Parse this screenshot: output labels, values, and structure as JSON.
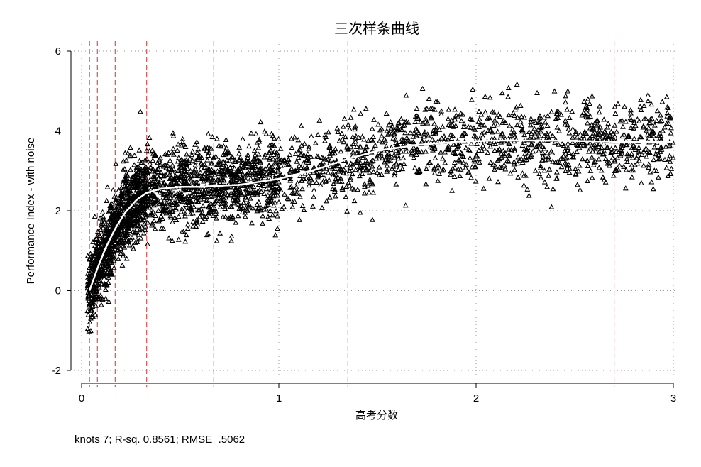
{
  "chart_data": {
    "type": "scatter",
    "title": "三次样条曲线",
    "xlabel": "高考分数",
    "ylabel": "Performance Index - with noise",
    "xlim": [
      0,
      3
    ],
    "ylim": [
      -2,
      6
    ],
    "x_ticks": [
      0,
      1,
      2,
      3
    ],
    "x_tick_labels": [
      "0",
      "1",
      "2",
      "3"
    ],
    "y_ticks": [
      -2,
      0,
      2,
      4,
      6
    ],
    "y_tick_labels": [
      "-2",
      "0",
      "2",
      "4",
      "6"
    ],
    "grid": true,
    "knots": [
      0.04,
      0.08,
      0.17,
      0.33,
      0.67,
      1.35,
      2.7
    ],
    "spline_fit": {
      "x": [
        0.04,
        0.08,
        0.12,
        0.17,
        0.22,
        0.28,
        0.33,
        0.4,
        0.5,
        0.6,
        0.67,
        0.8,
        1.0,
        1.2,
        1.35,
        1.5,
        1.7,
        1.9,
        2.1,
        2.3,
        2.5,
        2.7,
        2.85,
        3.0
      ],
      "y": [
        0.0,
        0.55,
        1.05,
        1.55,
        1.95,
        2.28,
        2.45,
        2.55,
        2.6,
        2.6,
        2.62,
        2.65,
        2.8,
        3.05,
        3.3,
        3.5,
        3.65,
        3.73,
        3.76,
        3.76,
        3.75,
        3.73,
        3.72,
        3.72
      ]
    },
    "scatter_noise_sd": 0.5,
    "n_points": 3200,
    "marker": "triangle",
    "series": [
      {
        "name": "",
        "color": "#000000"
      }
    ],
    "fit_color": "#ffffff",
    "knot_line_color": "#cc3333",
    "note": "knots 7; R-sq. 0.8561; RMSE  .5062"
  }
}
